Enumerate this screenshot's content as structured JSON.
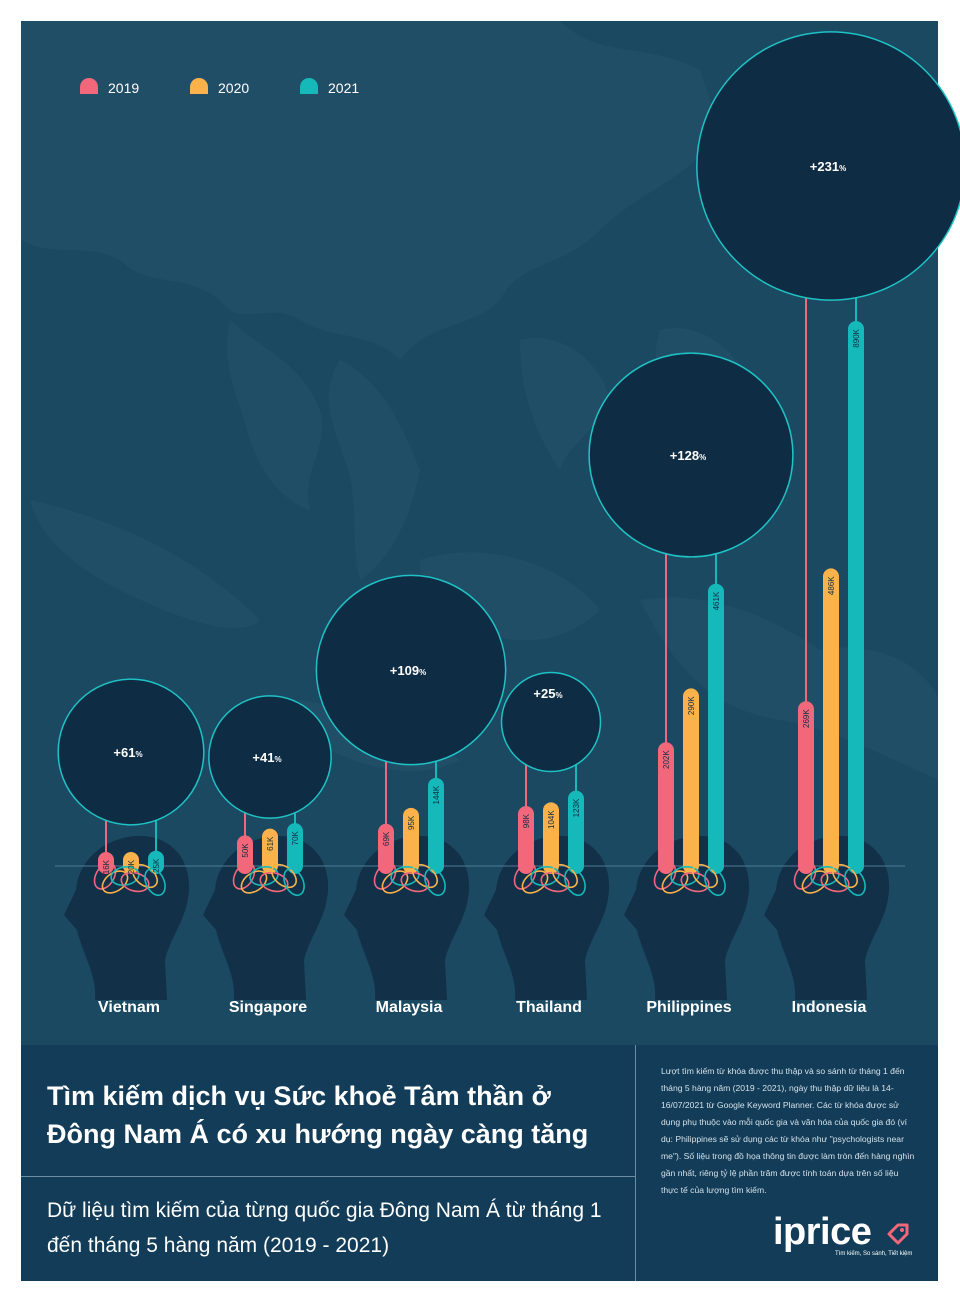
{
  "legend": [
    {
      "label": "2019",
      "color": "#f2677a"
    },
    {
      "label": "2020",
      "color": "#fbb24a"
    },
    {
      "label": "2021",
      "color": "#16b9b9"
    }
  ],
  "chart_data": {
    "type": "bar",
    "categories": [
      "Vietnam",
      "Singapore",
      "Malaysia",
      "Thailand",
      "Philippines",
      "Indonesia"
    ],
    "series": [
      {
        "name": "2019",
        "values": [
          16000,
          50000,
          69000,
          98000,
          202000,
          269000
        ],
        "labels": [
          "16K",
          "50K",
          "69K",
          "98K",
          "202K",
          "269K"
        ]
      },
      {
        "name": "2020",
        "values": [
          20000,
          61000,
          95000,
          104000,
          290000,
          486000
        ],
        "labels": [
          "20K",
          "61K",
          "95K",
          "104K",
          "290K",
          "486K"
        ]
      },
      {
        "name": "2021",
        "values": [
          25000,
          70000,
          144000,
          123000,
          461000,
          890000
        ],
        "labels": [
          "25K",
          "70K",
          "144K",
          "123K",
          "461K",
          "890K"
        ]
      }
    ],
    "growth": [
      "+61",
      "+41",
      "+109",
      "+25",
      "+128",
      "+231"
    ],
    "growth_values": [
      61,
      41,
      109,
      25,
      128,
      231
    ],
    "growth_unit": "%",
    "ylim": [
      0,
      890000
    ]
  },
  "footer": {
    "title": "Tìm kiếm dịch vụ Sức khoẻ Tâm thần ở Đông Nam Á có xu hướng ngày càng tăng",
    "subtitle": "Dữ liệu tìm kiếm của từng quốc gia Đông Nam Á từ tháng 1 đến tháng 5 hàng năm (2019 - 2021)",
    "note": "Lượt tìm kiếm từ khóa được thu thập và so sánh từ tháng 1 đến tháng 5 hàng năm (2019 - 2021), ngày thu thập dữ liệu là 14-16/07/2021 từ Google Keyword Planner. Các từ khóa được sử dụng phụ thuộc vào mỗi quốc gia và văn hóa của quốc gia đó (ví dụ: Philippines sẽ sử dụng các từ khóa như \"psychologists near me\"). Số liệu trong đồ họa thông tin được làm tròn đến hàng nghìn gần nhất, riêng tỷ lệ phần trăm được tính toán dựa trên số liệu thực tế của lượng tìm kiếm."
  },
  "logo": {
    "word": "iprice",
    "tagline": "Tìm kiếm, So sánh, Tiết kiệm"
  },
  "colors": {
    "background": "#1b4962",
    "circle_fill": "#0e2d45",
    "circle_stroke": "#1fc2c4",
    "head": "#123048",
    "footer": "#123c58"
  }
}
